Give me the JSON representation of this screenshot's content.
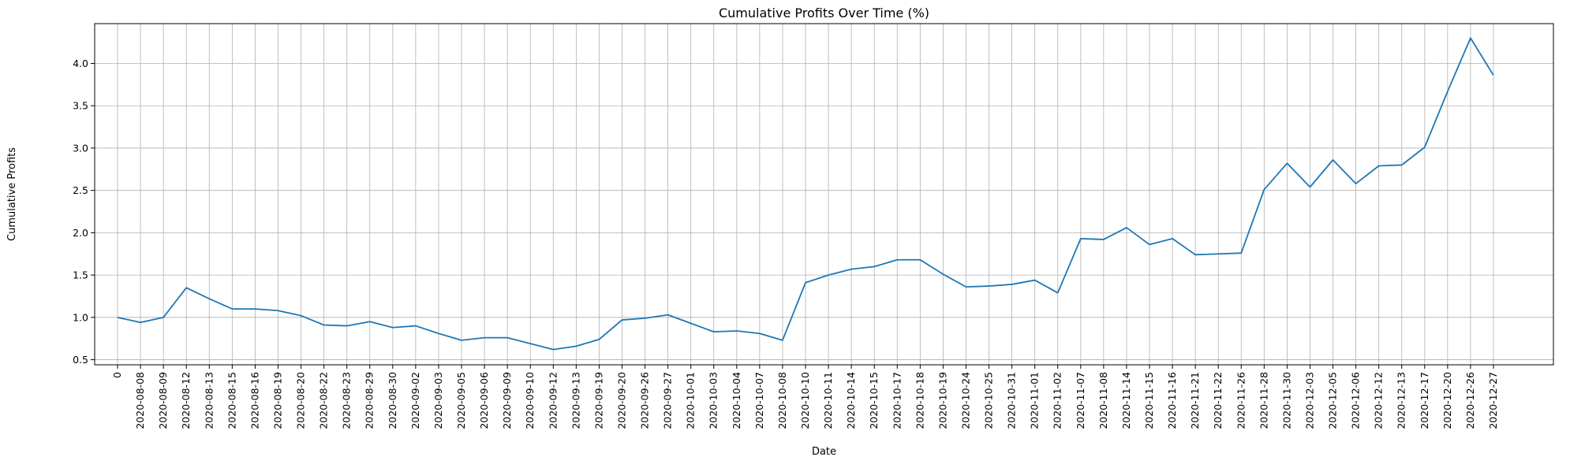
{
  "chart_data": {
    "type": "line",
    "title": "Cumulative Profits Over Time (%)",
    "xlabel": "Date",
    "ylabel": "Cumulative Profits",
    "grid": true,
    "ylim": [
      0.44,
      4.47
    ],
    "yticks": [
      0.5,
      1.0,
      1.5,
      2.0,
      2.5,
      3.0,
      3.5,
      4.0
    ],
    "ytick_labels": [
      "0.5",
      "1.0",
      "1.5",
      "2.0",
      "2.5",
      "3.0",
      "3.5",
      "4.0"
    ],
    "categories": [
      "0",
      "2020-08-08",
      "2020-08-09",
      "2020-08-12",
      "2020-08-13",
      "2020-08-15",
      "2020-08-16",
      "2020-08-19",
      "2020-08-20",
      "2020-08-22",
      "2020-08-23",
      "2020-08-29",
      "2020-08-30",
      "2020-09-02",
      "2020-09-03",
      "2020-09-05",
      "2020-09-06",
      "2020-09-09",
      "2020-09-10",
      "2020-09-12",
      "2020-09-13",
      "2020-09-19",
      "2020-09-20",
      "2020-09-26",
      "2020-09-27",
      "2020-10-01",
      "2020-10-03",
      "2020-10-04",
      "2020-10-07",
      "2020-10-08",
      "2020-10-10",
      "2020-10-11",
      "2020-10-14",
      "2020-10-15",
      "2020-10-17",
      "2020-10-18",
      "2020-10-19",
      "2020-10-24",
      "2020-10-25",
      "2020-10-31",
      "2020-11-01",
      "2020-11-02",
      "2020-11-07",
      "2020-11-08",
      "2020-11-14",
      "2020-11-15",
      "2020-11-16",
      "2020-11-21",
      "2020-11-22",
      "2020-11-26",
      "2020-11-28",
      "2020-11-30",
      "2020-12-03",
      "2020-12-05",
      "2020-12-06",
      "2020-12-12",
      "2020-12-13",
      "2020-12-17",
      "2020-12-20",
      "2020-12-26",
      "2020-12-27"
    ],
    "series": [
      {
        "color": "#1f77b4",
        "values": [
          1.0,
          0.94,
          1.0,
          1.35,
          1.22,
          1.1,
          1.1,
          1.08,
          1.02,
          0.91,
          0.9,
          0.95,
          0.88,
          0.9,
          0.81,
          0.73,
          0.76,
          0.76,
          0.69,
          0.62,
          0.66,
          0.74,
          0.97,
          0.99,
          1.03,
          0.93,
          0.83,
          0.84,
          0.81,
          0.73,
          1.41,
          1.5,
          1.57,
          1.6,
          1.68,
          1.68,
          1.51,
          1.36,
          1.37,
          1.39,
          1.44,
          1.29,
          1.93,
          1.92,
          2.06,
          1.86,
          1.93,
          1.74,
          1.75,
          1.76,
          2.51,
          2.82,
          2.54,
          2.86,
          2.58,
          2.79,
          2.8,
          3.01,
          3.67,
          4.3,
          3.86
        ]
      }
    ]
  }
}
